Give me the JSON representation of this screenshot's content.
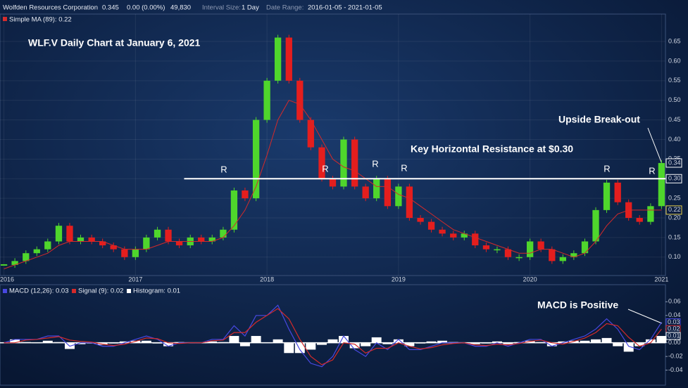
{
  "header": {
    "company": "Wolfden Resources Corporation",
    "price": "0.345",
    "change": "0.00 (0.00%)",
    "volume": "49,830",
    "interval_label": "Interval Size:",
    "interval": "1 Day",
    "range_label": "Date Range:",
    "range": "2016-01-05 - 2021-01-05"
  },
  "chart_data": [
    {
      "type": "candlestick",
      "title": "WLF.V Daily Chart at January 6, 2021",
      "x": [
        2016,
        2016.083,
        2016.167,
        2016.25,
        2016.333,
        2016.417,
        2016.5,
        2016.583,
        2016.667,
        2016.75,
        2016.833,
        2016.917,
        2017,
        2017.083,
        2017.167,
        2017.25,
        2017.333,
        2017.417,
        2017.5,
        2017.583,
        2017.667,
        2017.75,
        2017.833,
        2017.917,
        2018,
        2018.083,
        2018.167,
        2018.25,
        2018.333,
        2018.417,
        2018.5,
        2018.583,
        2018.667,
        2018.75,
        2018.833,
        2018.917,
        2019,
        2019.083,
        2019.167,
        2019.25,
        2019.333,
        2019.417,
        2019.5,
        2019.583,
        2019.667,
        2019.75,
        2019.833,
        2019.917,
        2020,
        2020.083,
        2020.167,
        2020.25,
        2020.333,
        2020.417,
        2020.5,
        2020.583,
        2020.667,
        2020.75,
        2020.833,
        2020.917,
        2021
      ],
      "series": [
        {
          "color_up": "#4fd62c",
          "color_down": "#e41e1e",
          "values": [
            0.08,
            0.09,
            0.11,
            0.12,
            0.14,
            0.18,
            0.14,
            0.15,
            0.14,
            0.13,
            0.12,
            0.1,
            0.12,
            0.15,
            0.17,
            0.14,
            0.13,
            0.15,
            0.14,
            0.15,
            0.17,
            0.27,
            0.25,
            0.45,
            0.55,
            0.66,
            0.55,
            0.45,
            0.38,
            0.3,
            0.28,
            0.4,
            0.28,
            0.25,
            0.3,
            0.23,
            0.28,
            0.2,
            0.19,
            0.17,
            0.16,
            0.15,
            0.16,
            0.13,
            0.12,
            0.12,
            0.1,
            0.1,
            0.14,
            0.12,
            0.09,
            0.1,
            0.11,
            0.14,
            0.22,
            0.29,
            0.24,
            0.2,
            0.19,
            0.23,
            0.34
          ]
        },
        {
          "name": "Simple MA (89): 0.22",
          "color": "#d42a2a",
          "values": [
            0.07,
            0.08,
            0.09,
            0.1,
            0.11,
            0.13,
            0.14,
            0.14,
            0.14,
            0.14,
            0.13,
            0.12,
            0.12,
            0.12,
            0.13,
            0.14,
            0.14,
            0.14,
            0.14,
            0.14,
            0.15,
            0.18,
            0.22,
            0.28,
            0.36,
            0.45,
            0.5,
            0.49,
            0.45,
            0.4,
            0.35,
            0.33,
            0.32,
            0.3,
            0.28,
            0.28,
            0.26,
            0.25,
            0.23,
            0.21,
            0.19,
            0.17,
            0.16,
            0.15,
            0.14,
            0.13,
            0.12,
            0.11,
            0.11,
            0.12,
            0.12,
            0.11,
            0.1,
            0.11,
            0.14,
            0.18,
            0.21,
            0.22,
            0.22,
            0.22,
            0.22
          ]
        }
      ],
      "xlim": [
        2015.97,
        2021.03
      ],
      "xticks": [
        2016,
        2017,
        2018,
        2019,
        2020,
        2021
      ],
      "ylim": [
        0.053,
        0.72
      ],
      "yticks": [
        {
          "value": 0.1,
          "label": "0.10"
        },
        0.15,
        {
          "value": 0.2,
          "label": "0.20"
        },
        0.25,
        {
          "value": 0.3,
          "label": "0.30"
        },
        0.35,
        {
          "value": 0.4,
          "label": "0.40"
        },
        0.45,
        {
          "value": 0.5,
          "label": "0.50"
        },
        0.55,
        {
          "value": 0.6,
          "label": "0.60"
        },
        0.65
      ],
      "grid": true,
      "resistance": {
        "value": 0.3,
        "start": 2017.37,
        "label": "Key Horizontal Resistance at $0.30"
      },
      "annotations": [
        "Upside Break-out",
        "R",
        "R",
        "R",
        "R",
        "R",
        "R"
      ],
      "tags": [
        0.34,
        {
          "value": 0.3,
          "label": "0.30"
        },
        0.22
      ]
    },
    {
      "type": "macd",
      "title": "MACD is Positive",
      "x": [
        2016,
        2016.083,
        2016.167,
        2016.25,
        2016.333,
        2016.417,
        2016.5,
        2016.583,
        2016.667,
        2016.75,
        2016.833,
        2016.917,
        2017,
        2017.083,
        2017.167,
        2017.25,
        2017.333,
        2017.417,
        2017.5,
        2017.583,
        2017.667,
        2017.75,
        2017.833,
        2017.917,
        2018,
        2018.083,
        2018.167,
        2018.25,
        2018.333,
        2018.417,
        2018.5,
        2018.583,
        2018.667,
        2018.75,
        2018.833,
        2018.917,
        2019,
        2019.083,
        2019.167,
        2019.25,
        2019.333,
        2019.417,
        2019.5,
        2019.583,
        2019.667,
        2019.75,
        2019.833,
        2019.917,
        2020,
        2020.083,
        2020.167,
        2020.25,
        2020.333,
        2020.417,
        2020.5,
        2020.583,
        2020.667,
        2020.75,
        2020.833,
        2020.917,
        2021
      ],
      "series": [
        {
          "name": "MACD (12,26): 0.03",
          "color": "#4848e0",
          "values": [
            0,
            0.005,
            0.005,
            0.005,
            0.01,
            0.01,
            -0.005,
            0,
            0,
            -0.005,
            -0.005,
            0,
            0.005,
            0.01,
            0.005,
            -0.005,
            0,
            0,
            0,
            0.005,
            0.005,
            0.025,
            0.01,
            0.04,
            0.04,
            0.055,
            0.02,
            -0.01,
            -0.03,
            -0.035,
            -0.02,
            0.01,
            -0.01,
            -0.02,
            0,
            -0.01,
            0.005,
            -0.01,
            -0.01,
            -0.005,
            0,
            0,
            0,
            -0.005,
            -0.005,
            0,
            -0.005,
            0,
            0.005,
            0.005,
            -0.005,
            0,
            0.005,
            0.01,
            0.02,
            0.035,
            0.02,
            -0.005,
            -0.01,
            0.005,
            0.03
          ]
        },
        {
          "name": "Signal (9): 0.02",
          "color": "#d42a2a",
          "values": [
            0,
            0,
            0.004,
            0.005,
            0.007,
            0.009,
            0.004,
            0.002,
            0.001,
            -0.002,
            -0.004,
            -0.002,
            0.002,
            0.007,
            0.006,
            0,
            -0.001,
            0,
            0,
            0.003,
            0.004,
            0.015,
            0.015,
            0.03,
            0.04,
            0.05,
            0.035,
            0.005,
            -0.02,
            -0.032,
            -0.025,
            0,
            -0.002,
            -0.015,
            -0.008,
            -0.008,
            0,
            -0.005,
            -0.009,
            -0.007,
            -0.003,
            -0.001,
            0,
            -0.003,
            -0.004,
            -0.002,
            -0.003,
            -0.001,
            0.002,
            0.004,
            0,
            -0.002,
            0.002,
            0.007,
            0.015,
            0.028,
            0.025,
            0.008,
            -0.005,
            0,
            0.02
          ]
        },
        {
          "name": "Histogram: 0.01",
          "color": "#ffffff",
          "values": [
            0,
            0.005,
            0.001,
            0,
            0.003,
            0.001,
            -0.009,
            -0.002,
            -0.001,
            -0.003,
            -0.001,
            0.002,
            0.003,
            0.003,
            -0.001,
            -0.005,
            0.001,
            0,
            0,
            0.002,
            0.001,
            0.01,
            -0.005,
            0.01,
            0,
            0.005,
            -0.015,
            -0.015,
            -0.01,
            -0.003,
            0.005,
            0.01,
            -0.008,
            -0.005,
            0.008,
            -0.002,
            0.005,
            -0.005,
            -0.001,
            0.002,
            0.003,
            0.001,
            0,
            -0.002,
            -0.001,
            0.002,
            -0.002,
            0.001,
            0.003,
            0.001,
            -0.005,
            0.002,
            0.003,
            0.003,
            0.005,
            0.007,
            -0.005,
            -0.013,
            -0.005,
            0.005,
            0.01
          ]
        }
      ],
      "xlim": [
        2015.97,
        2021.03
      ],
      "ylim": [
        -0.062,
        0.085
      ],
      "yticks": [
        0.06,
        0.04,
        0.02,
        {
          "value": 0,
          "label": "0.00"
        },
        -0.02,
        -0.04
      ],
      "tags": [
        0.03,
        0.02,
        0.01
      ]
    }
  ]
}
